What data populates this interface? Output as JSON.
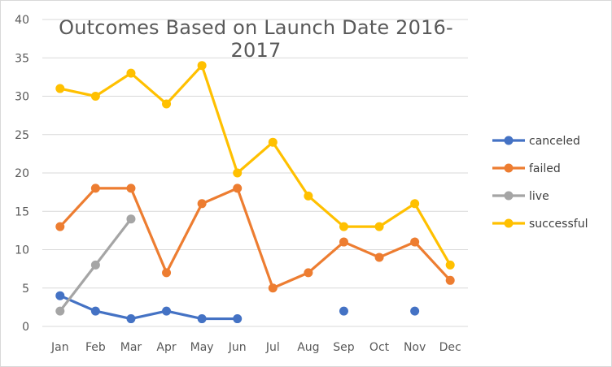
{
  "chart_data": {
    "type": "line",
    "title": "Outcomes Based on Launch Date 2016-2017",
    "xlabel": "",
    "ylabel": "",
    "categories": [
      "Jan",
      "Feb",
      "Mar",
      "Apr",
      "May",
      "Jun",
      "Jul",
      "Aug",
      "Sep",
      "Oct",
      "Nov",
      "Dec"
    ],
    "ylim": [
      0,
      40
    ],
    "yticks": [
      0,
      5,
      10,
      15,
      20,
      25,
      30,
      35,
      40
    ],
    "grid": "horizontal",
    "legend_position": "right",
    "series": [
      {
        "name": "canceled",
        "color": "#4472C4",
        "values": [
          4,
          2,
          1,
          2,
          1,
          1,
          null,
          null,
          2,
          null,
          2,
          null
        ]
      },
      {
        "name": "failed",
        "color": "#ED7D31",
        "values": [
          13,
          18,
          18,
          7,
          16,
          18,
          5,
          7,
          11,
          9,
          11,
          6
        ]
      },
      {
        "name": "live",
        "color": "#A5A5A5",
        "values": [
          2,
          8,
          14,
          null,
          null,
          null,
          null,
          null,
          null,
          null,
          null,
          null
        ]
      },
      {
        "name": "successful",
        "color": "#FFC000",
        "values": [
          31,
          30,
          33,
          29,
          34,
          20,
          24,
          17,
          13,
          13,
          16,
          8
        ]
      }
    ]
  }
}
